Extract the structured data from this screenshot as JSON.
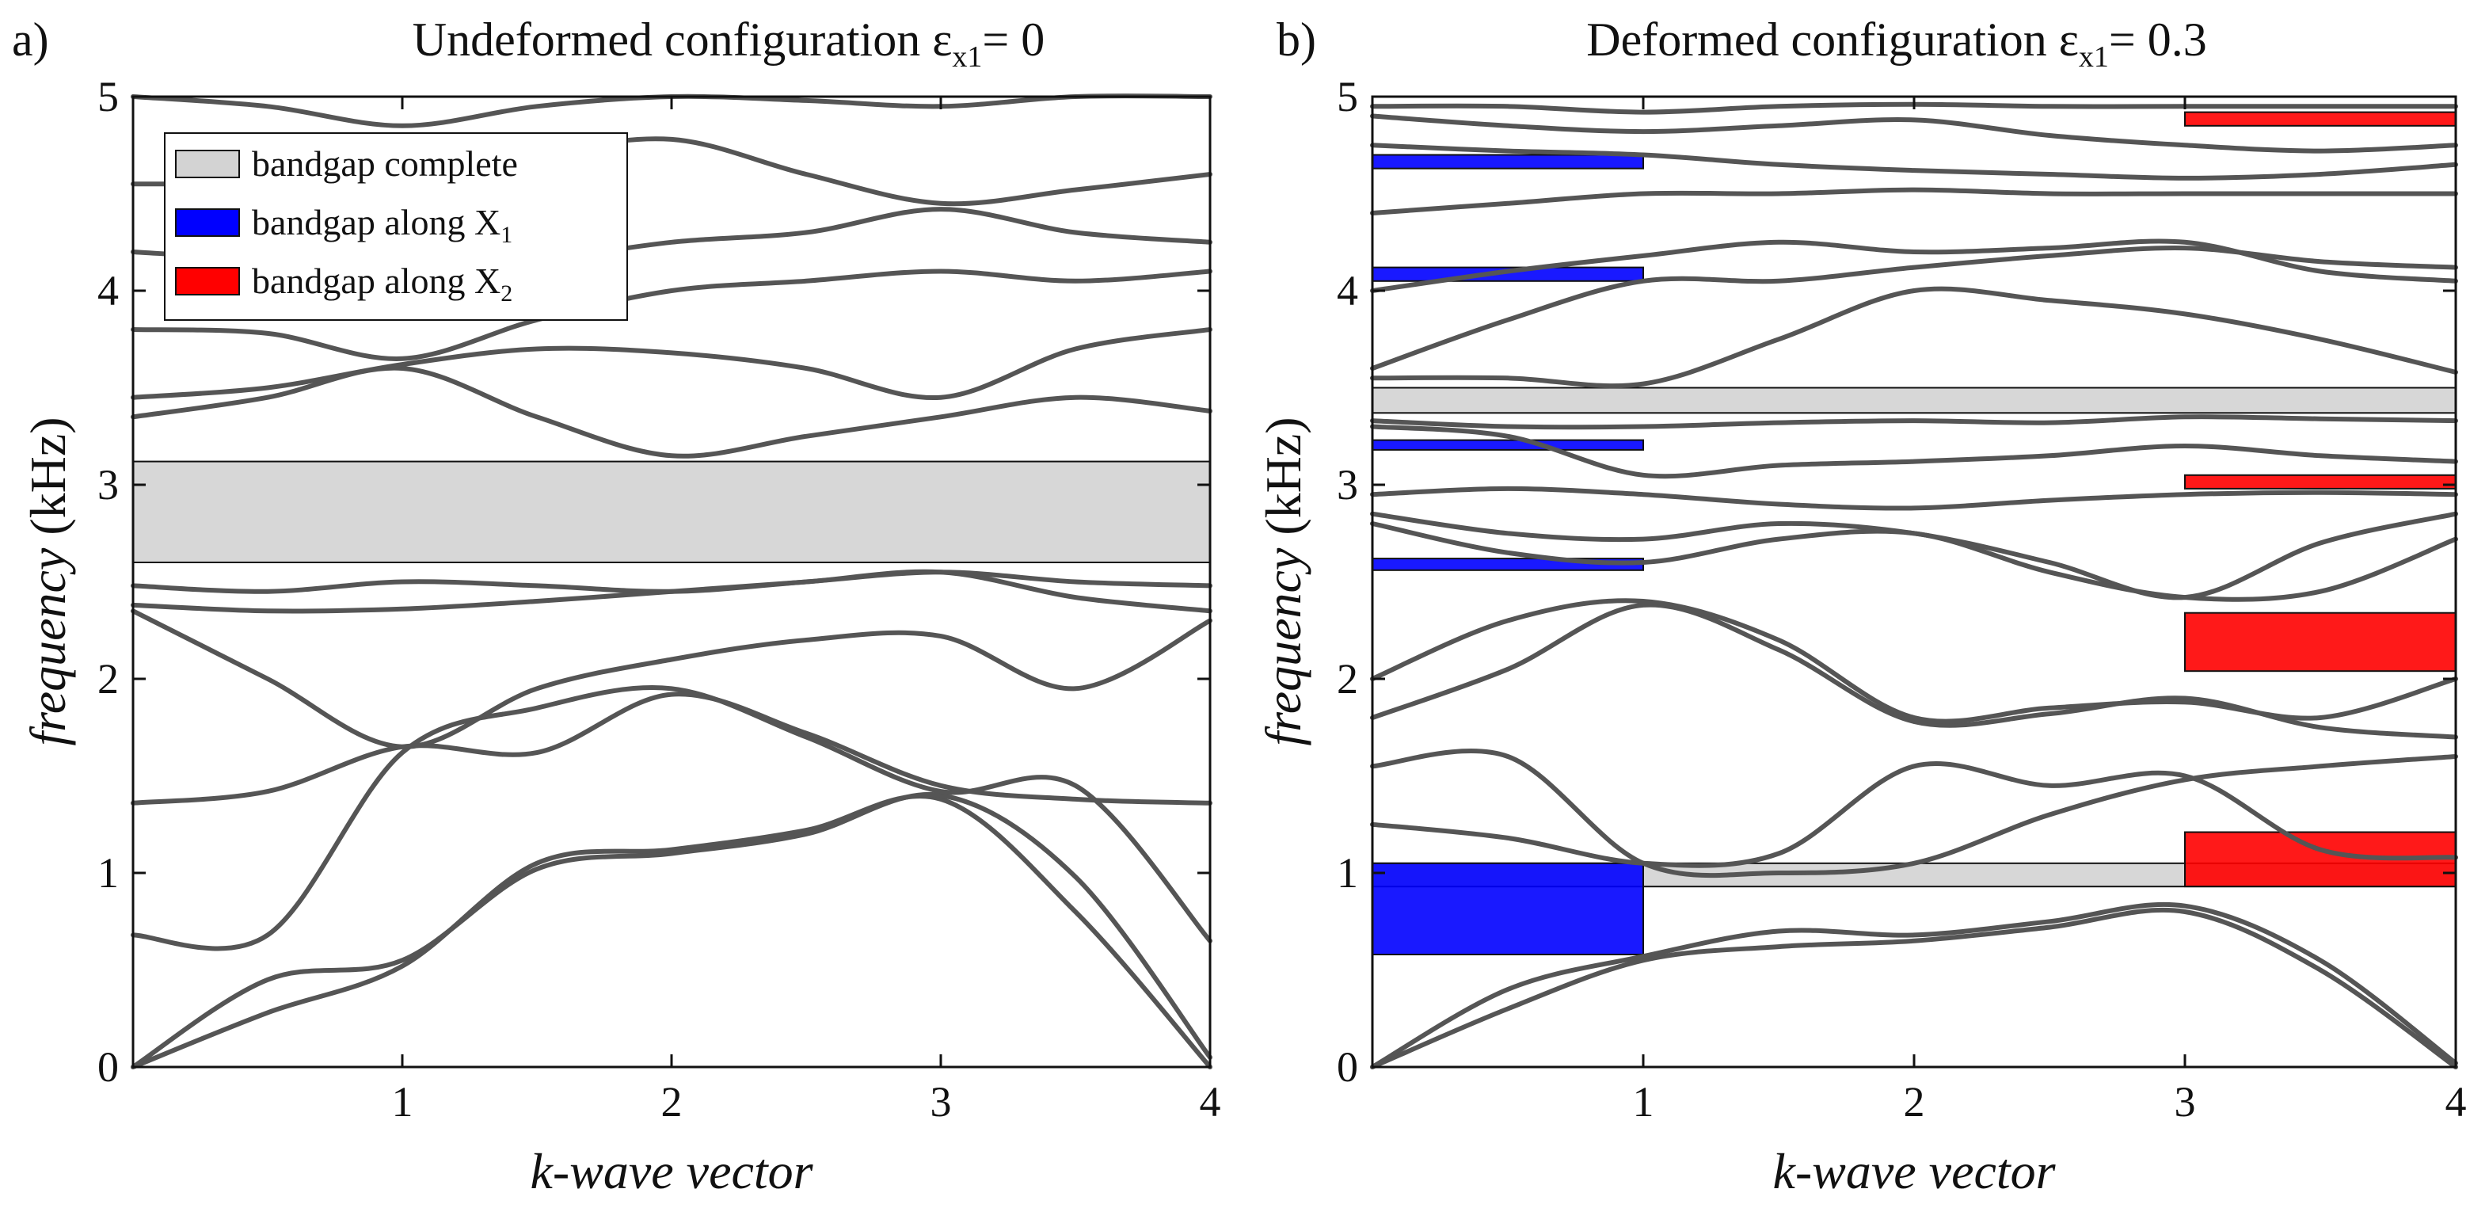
{
  "chart_data": [
    {
      "type": "line",
      "panel_label": "a)",
      "title": "Undeformed configuration  ε",
      "title_sub": "x1",
      "title_tail": "= 0",
      "xlabel": "k-wave vector",
      "ylabel": "frequency",
      "ylabel_unit": " (kHz)",
      "xlim": [
        0,
        4
      ],
      "ylim": [
        0,
        5
      ],
      "xticks": [
        "1",
        "2",
        "3",
        "4"
      ],
      "yticks": [
        "0",
        "1",
        "2",
        "3",
        "4",
        "5"
      ],
      "legend": {
        "placement": "top-left",
        "entries": [
          {
            "label": "bandgap complete",
            "sub": "",
            "color": "#d3d3d3"
          },
          {
            "label": "bandgap along X",
            "sub": "1",
            "color": "#0000ff"
          },
          {
            "label": "bandgap along X",
            "sub": "2",
            "color": "#ff0000"
          }
        ]
      },
      "bandgaps": [
        {
          "kind": "complete",
          "x": [
            0,
            4
          ],
          "y": [
            2.6,
            3.12
          ],
          "color": "#d3d3d3"
        }
      ],
      "series_color": "#555555",
      "series": [
        {
          "name": "band 1",
          "x": [
            0,
            0.5,
            1,
            1.5,
            2,
            2.5,
            3,
            3.5,
            4
          ],
          "y": [
            0,
            0.28,
            0.52,
            1.05,
            1.12,
            1.22,
            1.38,
            0.8,
            0
          ]
        },
        {
          "name": "band 2",
          "x": [
            0,
            0.5,
            1,
            1.5,
            2,
            2.5,
            3,
            3.5,
            4
          ],
          "y": [
            0,
            0.45,
            0.55,
            1.02,
            1.1,
            1.2,
            1.4,
            0.98,
            0.05
          ]
        },
        {
          "name": "band 3",
          "x": [
            0,
            0.5,
            1,
            1.5,
            2,
            2.5,
            3,
            3.5,
            4
          ],
          "y": [
            0.68,
            0.68,
            1.62,
            1.85,
            1.95,
            1.7,
            1.42,
            1.45,
            0.65
          ]
        },
        {
          "name": "band 4",
          "x": [
            0,
            0.5,
            1,
            1.5,
            2,
            2.5,
            3,
            3.5,
            4
          ],
          "y": [
            1.36,
            1.42,
            1.65,
            1.62,
            1.92,
            1.72,
            1.45,
            1.38,
            1.36
          ]
        },
        {
          "name": "band 5",
          "x": [
            0,
            0.5,
            1,
            1.5,
            2,
            2.5,
            3,
            3.5,
            4
          ],
          "y": [
            2.35,
            2.0,
            1.65,
            1.95,
            2.1,
            2.2,
            2.22,
            1.95,
            2.3
          ]
        },
        {
          "name": "band 6",
          "x": [
            0,
            0.5,
            1,
            1.5,
            2,
            2.5,
            3,
            3.5,
            4
          ],
          "y": [
            2.38,
            2.35,
            2.36,
            2.4,
            2.45,
            2.5,
            2.55,
            2.42,
            2.35
          ]
        },
        {
          "name": "band 7",
          "x": [
            0,
            0.5,
            1,
            1.5,
            2,
            2.5,
            3,
            3.5,
            4
          ],
          "y": [
            2.48,
            2.45,
            2.5,
            2.48,
            2.45,
            2.5,
            2.55,
            2.5,
            2.48
          ]
        },
        {
          "name": "band 8",
          "x": [
            0,
            0.5,
            1,
            1.5,
            2,
            2.5,
            3,
            3.5,
            4
          ],
          "y": [
            3.35,
            3.45,
            3.6,
            3.35,
            3.15,
            3.25,
            3.35,
            3.45,
            3.38
          ]
        },
        {
          "name": "band 9",
          "x": [
            0,
            0.5,
            1,
            1.5,
            2,
            2.5,
            3,
            3.5,
            4
          ],
          "y": [
            3.45,
            3.5,
            3.62,
            3.7,
            3.68,
            3.6,
            3.45,
            3.7,
            3.8
          ]
        },
        {
          "name": "band 10",
          "x": [
            0,
            0.5,
            1,
            1.5,
            2,
            2.5,
            3,
            3.5,
            4
          ],
          "y": [
            3.8,
            3.78,
            3.65,
            3.85,
            4.0,
            4.05,
            4.1,
            4.05,
            4.1
          ]
        },
        {
          "name": "band 11",
          "x": [
            0,
            0.5,
            1,
            1.5,
            2,
            2.5,
            3,
            3.5,
            4
          ],
          "y": [
            4.2,
            4.15,
            4.05,
            4.15,
            4.25,
            4.3,
            4.42,
            4.3,
            4.25
          ]
        },
        {
          "name": "band 12",
          "x": [
            0,
            0.5,
            1,
            1.5,
            2,
            2.5,
            3,
            3.5,
            4
          ],
          "y": [
            4.55,
            4.55,
            4.55,
            4.7,
            4.78,
            4.6,
            4.45,
            4.52,
            4.6
          ]
        },
        {
          "name": "band 13",
          "x": [
            0,
            0.5,
            1,
            1.5,
            2,
            2.5,
            3,
            3.5,
            4
          ],
          "y": [
            5.0,
            4.95,
            4.85,
            4.95,
            5.0,
            4.98,
            4.95,
            5.0,
            5.0
          ]
        }
      ]
    },
    {
      "type": "line",
      "panel_label": "b)",
      "title": "Deformed configuration  ε",
      "title_sub": "x1",
      "title_tail": "= 0.3",
      "xlabel": "k-wave vector",
      "ylabel": "frequency",
      "ylabel_unit": " (kHz)",
      "xlim": [
        0,
        4
      ],
      "ylim": [
        0,
        5
      ],
      "xticks": [
        "1",
        "2",
        "3",
        "4"
      ],
      "yticks": [
        "0",
        "1",
        "2",
        "3",
        "4",
        "5"
      ],
      "bandgaps": [
        {
          "kind": "complete",
          "x": [
            0,
            4
          ],
          "y": [
            3.37,
            3.5
          ],
          "color": "#d3d3d3"
        },
        {
          "kind": "complete",
          "x": [
            0,
            4
          ],
          "y": [
            0.93,
            1.05
          ],
          "color": "#d3d3d3"
        },
        {
          "kind": "along-X1",
          "x": [
            0,
            1
          ],
          "y": [
            0.58,
            1.05
          ],
          "color": "#0000ff"
        },
        {
          "kind": "along-X1",
          "x": [
            0,
            1
          ],
          "y": [
            2.56,
            2.62
          ],
          "color": "#0000ff"
        },
        {
          "kind": "along-X1",
          "x": [
            0,
            1
          ],
          "y": [
            3.18,
            3.23
          ],
          "color": "#0000ff"
        },
        {
          "kind": "along-X1",
          "x": [
            0,
            1
          ],
          "y": [
            4.05,
            4.12
          ],
          "color": "#0000ff"
        },
        {
          "kind": "along-X1",
          "x": [
            0,
            1
          ],
          "y": [
            4.63,
            4.7
          ],
          "color": "#0000ff"
        },
        {
          "kind": "along-X2",
          "x": [
            3,
            4
          ],
          "y": [
            0.93,
            1.21
          ],
          "color": "#ff0000"
        },
        {
          "kind": "along-X2",
          "x": [
            3,
            4
          ],
          "y": [
            2.04,
            2.34
          ],
          "color": "#ff0000"
        },
        {
          "kind": "along-X2",
          "x": [
            3,
            4
          ],
          "y": [
            2.98,
            3.05
          ],
          "color": "#ff0000"
        },
        {
          "kind": "along-X2",
          "x": [
            3,
            4
          ],
          "y": [
            4.85,
            4.92
          ],
          "color": "#ff0000"
        }
      ],
      "series_color": "#555555",
      "series": [
        {
          "name": "band 1",
          "x": [
            0,
            0.5,
            1,
            1.5,
            2,
            2.5,
            3,
            3.5,
            4
          ],
          "y": [
            0,
            0.3,
            0.55,
            0.62,
            0.65,
            0.72,
            0.8,
            0.5,
            0
          ]
        },
        {
          "name": "band 2",
          "x": [
            0,
            0.5,
            1,
            1.5,
            2,
            2.5,
            3,
            3.5,
            4
          ],
          "y": [
            0,
            0.4,
            0.57,
            0.7,
            0.68,
            0.75,
            0.83,
            0.55,
            0.02
          ]
        },
        {
          "name": "band 3",
          "x": [
            0,
            0.5,
            1,
            1.5,
            2,
            2.5,
            3,
            3.5,
            4
          ],
          "y": [
            1.25,
            1.18,
            1.05,
            1.1,
            1.55,
            1.45,
            1.5,
            1.12,
            1.08
          ]
        },
        {
          "name": "band 4",
          "x": [
            0,
            0.5,
            1,
            1.5,
            2,
            2.5,
            3,
            3.5,
            4
          ],
          "y": [
            1.55,
            1.6,
            1.05,
            1.0,
            1.05,
            1.3,
            1.48,
            1.55,
            1.6
          ]
        },
        {
          "name": "band 5",
          "x": [
            0,
            0.5,
            1,
            1.5,
            2,
            2.5,
            3,
            3.5,
            4
          ],
          "y": [
            1.8,
            2.05,
            2.38,
            2.15,
            1.78,
            1.82,
            1.9,
            1.75,
            1.7
          ]
        },
        {
          "name": "band 6",
          "x": [
            0,
            0.5,
            1,
            1.5,
            2,
            2.5,
            3,
            3.5,
            4
          ],
          "y": [
            2.0,
            2.3,
            2.4,
            2.2,
            1.8,
            1.85,
            1.88,
            1.8,
            2.0
          ]
        },
        {
          "name": "band 7",
          "x": [
            0,
            0.5,
            1,
            1.5,
            2,
            2.5,
            3,
            3.5,
            4
          ],
          "y": [
            2.8,
            2.65,
            2.6,
            2.72,
            2.75,
            2.55,
            2.42,
            2.45,
            2.72
          ]
        },
        {
          "name": "band 8",
          "x": [
            0,
            0.5,
            1,
            1.5,
            2,
            2.5,
            3,
            3.5,
            4
          ],
          "y": [
            2.85,
            2.75,
            2.72,
            2.8,
            2.75,
            2.6,
            2.42,
            2.7,
            2.85
          ]
        },
        {
          "name": "band 9",
          "x": [
            0,
            0.5,
            1,
            1.5,
            2,
            2.5,
            3,
            3.5,
            4
          ],
          "y": [
            2.95,
            2.98,
            2.95,
            2.9,
            2.88,
            2.92,
            2.95,
            2.96,
            2.95
          ]
        },
        {
          "name": "band 10",
          "x": [
            0,
            0.5,
            1,
            1.5,
            2,
            2.5,
            3,
            3.5,
            4
          ],
          "y": [
            3.3,
            3.25,
            3.05,
            3.1,
            3.12,
            3.15,
            3.2,
            3.15,
            3.12
          ]
        },
        {
          "name": "band 11",
          "x": [
            0,
            0.5,
            1,
            1.5,
            2,
            2.5,
            3,
            3.5,
            4
          ],
          "y": [
            3.33,
            3.3,
            3.3,
            3.32,
            3.33,
            3.32,
            3.35,
            3.34,
            3.33
          ]
        },
        {
          "name": "band 12",
          "x": [
            0,
            0.5,
            1,
            1.5,
            2,
            2.5,
            3,
            3.5,
            4
          ],
          "y": [
            3.55,
            3.55,
            3.52,
            3.75,
            4.0,
            3.95,
            3.88,
            3.75,
            3.58
          ]
        },
        {
          "name": "band 13",
          "x": [
            0,
            0.5,
            1,
            1.5,
            2,
            2.5,
            3,
            3.5,
            4
          ],
          "y": [
            3.6,
            3.85,
            4.05,
            4.05,
            4.12,
            4.18,
            4.22,
            4.15,
            4.12
          ]
        },
        {
          "name": "band 14",
          "x": [
            0,
            0.5,
            1,
            1.5,
            2,
            2.5,
            3,
            3.5,
            4
          ],
          "y": [
            4.0,
            4.1,
            4.18,
            4.25,
            4.2,
            4.22,
            4.25,
            4.1,
            4.05
          ]
        },
        {
          "name": "band 15",
          "x": [
            0,
            0.5,
            1,
            1.5,
            2,
            2.5,
            3,
            3.5,
            4
          ],
          "y": [
            4.4,
            4.45,
            4.5,
            4.5,
            4.52,
            4.5,
            4.5,
            4.5,
            4.5
          ]
        },
        {
          "name": "band 16",
          "x": [
            0,
            0.5,
            1,
            1.5,
            2,
            2.5,
            3,
            3.5,
            4
          ],
          "y": [
            4.75,
            4.72,
            4.7,
            4.65,
            4.62,
            4.6,
            4.58,
            4.6,
            4.65
          ]
        },
        {
          "name": "band 17",
          "x": [
            0,
            0.5,
            1,
            1.5,
            2,
            2.5,
            3,
            3.5,
            4
          ],
          "y": [
            4.9,
            4.85,
            4.82,
            4.85,
            4.88,
            4.8,
            4.75,
            4.72,
            4.75
          ]
        },
        {
          "name": "band 18",
          "x": [
            0,
            0.5,
            1,
            1.5,
            2,
            2.5,
            3,
            3.5,
            4
          ],
          "y": [
            4.95,
            4.95,
            4.92,
            4.95,
            4.96,
            4.95,
            4.95,
            4.95,
            4.95
          ]
        }
      ]
    }
  ]
}
